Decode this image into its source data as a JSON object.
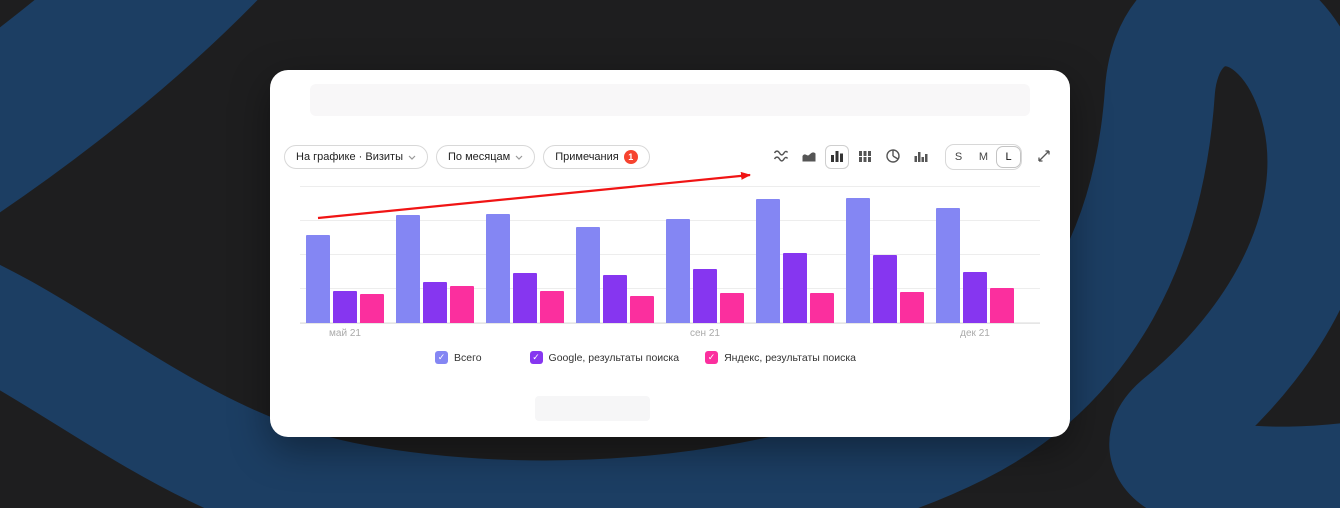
{
  "background": {
    "base_color": "#1e1e1f",
    "swirl_color": "#1c3e63"
  },
  "card": {
    "controls": {
      "metric_pill": {
        "label": "На графике · Визиты"
      },
      "grouping_pill": {
        "label": "По месяцам"
      },
      "notes_pill": {
        "label": "Примечания",
        "badge_count": "1",
        "badge_color": "#f6432f"
      }
    },
    "toolbar": {
      "chart_type_icons": [
        "line-chart",
        "area-chart",
        "bar-chart",
        "stacked-bar-chart",
        "pie-chart",
        "histogram"
      ],
      "active_chart_type": "bar-chart",
      "size_options": [
        "S",
        "M",
        "L"
      ],
      "active_size": "L"
    }
  },
  "chart_data": {
    "type": "bar",
    "title": "",
    "xlabel": "",
    "ylabel": "",
    "categories": [
      "май 21",
      "",
      "",
      "",
      "сен 21",
      "",
      "",
      "дек 21"
    ],
    "series": [
      {
        "name": "Всего",
        "color": "#8486f3",
        "values": [
          91,
          111,
          112,
          99,
          107,
          128,
          129,
          118
        ]
      },
      {
        "name": "Google, результаты поиска",
        "color": "#8636f0",
        "values": [
          33,
          42,
          51,
          49,
          56,
          72,
          70,
          53
        ]
      },
      {
        "name": "Яндекс, результаты поиска",
        "color": "#fb2f9e",
        "values": [
          30,
          38,
          33,
          28,
          31,
          31,
          32,
          36
        ]
      }
    ],
    "ylim": [
      0,
      140
    ],
    "grid": true,
    "legend_position": "bottom",
    "annotation": {
      "type": "arrow",
      "color": "#f01414",
      "description": "red upward trend arrow over bars"
    }
  },
  "legend": {
    "items": [
      {
        "label": "Всего",
        "color": "#8486f3",
        "checked": true
      },
      {
        "label": "Google, результаты поиска",
        "color": "#8636f0",
        "checked": true
      },
      {
        "label": "Яндекс, результаты поиска",
        "color": "#fb2f9e",
        "checked": true
      }
    ]
  }
}
